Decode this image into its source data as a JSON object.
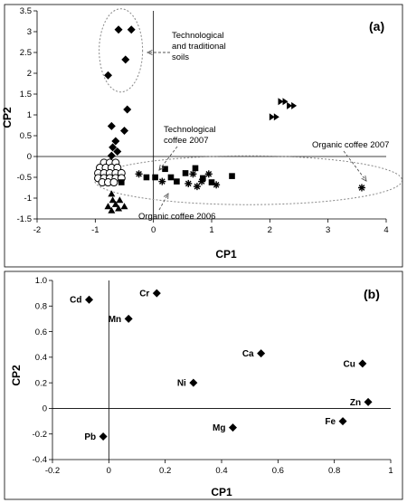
{
  "chart_data": [
    {
      "type": "scatter",
      "panel_label": "(a)",
      "xlabel": "CP1",
      "ylabel": "CP2",
      "xlim": [
        -2,
        4
      ],
      "ylim": [
        -1.5,
        3.5
      ],
      "xticks": [
        "-2",
        "-1",
        "0",
        "1",
        "2",
        "3",
        "4"
      ],
      "yticks": [
        "-1.5",
        "-1",
        "-0.5",
        "0",
        "0.5",
        "1",
        "1.5",
        "2",
        "2.5",
        "3",
        "3.5"
      ],
      "grid": false,
      "series": [
        {
          "marker": "diamond",
          "points": [
            [
              -0.6,
              3.05
            ],
            [
              -0.38,
              3.05
            ],
            [
              -0.48,
              2.33
            ],
            [
              -0.78,
              1.95
            ],
            [
              -0.45,
              1.13
            ],
            [
              -0.72,
              0.73
            ],
            [
              -0.5,
              0.62
            ],
            [
              -0.65,
              0.37
            ],
            [
              -0.7,
              0.22
            ],
            [
              -0.62,
              0.12
            ],
            [
              -0.72,
              0.02
            ]
          ]
        },
        {
          "marker": "open-circle",
          "points": [
            [
              -0.85,
              -0.15
            ],
            [
              -0.75,
              -0.15
            ],
            [
              -0.65,
              -0.15
            ],
            [
              -0.92,
              -0.27
            ],
            [
              -0.82,
              -0.27
            ],
            [
              -0.72,
              -0.27
            ],
            [
              -0.62,
              -0.27
            ],
            [
              -0.95,
              -0.4
            ],
            [
              -0.85,
              -0.4
            ],
            [
              -0.75,
              -0.4
            ],
            [
              -0.65,
              -0.4
            ],
            [
              -0.55,
              -0.4
            ],
            [
              -0.95,
              -0.52
            ],
            [
              -0.85,
              -0.52
            ],
            [
              -0.75,
              -0.52
            ],
            [
              -0.65,
              -0.52
            ],
            [
              -0.55,
              -0.52
            ],
            [
              -0.88,
              -0.62
            ],
            [
              -0.78,
              -0.62
            ],
            [
              -0.68,
              -0.62
            ]
          ]
        },
        {
          "marker": "triangle",
          "points": [
            [
              -0.72,
              -0.9
            ],
            [
              -0.7,
              -1.05
            ],
            [
              -0.65,
              -1.15
            ],
            [
              -0.58,
              -1.05
            ],
            [
              -0.78,
              -1.2
            ],
            [
              -0.5,
              -1.2
            ],
            [
              -0.6,
              -1.25
            ],
            [
              -0.72,
              -1.3
            ]
          ]
        },
        {
          "marker": "square",
          "points": [
            [
              -0.55,
              -0.62
            ],
            [
              -0.12,
              -0.5
            ],
            [
              0.03,
              -0.5
            ],
            [
              0.2,
              -0.3
            ],
            [
              0.3,
              -0.5
            ],
            [
              0.4,
              -0.6
            ],
            [
              0.55,
              -0.4
            ],
            [
              0.72,
              -0.28
            ],
            [
              0.85,
              -0.52
            ],
            [
              1.0,
              -0.62
            ],
            [
              1.35,
              -0.47
            ]
          ]
        },
        {
          "marker": "asterisk",
          "points": [
            [
              -0.25,
              -0.42
            ],
            [
              0.15,
              -0.6
            ],
            [
              0.68,
              -0.42
            ],
            [
              0.6,
              -0.65
            ],
            [
              0.75,
              -0.72
            ],
            [
              0.83,
              -0.6
            ],
            [
              0.95,
              -0.42
            ],
            [
              1.08,
              -0.68
            ],
            [
              3.58,
              -0.75
            ]
          ]
        },
        {
          "marker": "double-triangle",
          "points": [
            [
              2.22,
              1.32
            ],
            [
              2.37,
              1.22
            ],
            [
              2.07,
              0.95
            ]
          ]
        }
      ],
      "annotations": [
        {
          "lines": [
            "Technological",
            "and traditional",
            "soils"
          ]
        },
        {
          "lines": [
            "Technological",
            "coffee 2007"
          ]
        },
        {
          "lines": [
            "Organic coffee 2006"
          ]
        },
        {
          "lines": [
            "Organic coffee 2007"
          ]
        }
      ]
    },
    {
      "type": "scatter",
      "panel_label": "(b)",
      "xlabel": "CP1",
      "ylabel": "CP2",
      "xlim": [
        -0.2,
        1.0
      ],
      "ylim": [
        -0.4,
        1.0
      ],
      "xticks": [
        "-0.2",
        "0",
        "0.2",
        "0.4",
        "0.6",
        "0.8",
        "1"
      ],
      "yticks": [
        "-0.4",
        "-0.2",
        "0",
        "0.2",
        "0.4",
        "0.6",
        "0.8",
        "1.0"
      ],
      "grid": false,
      "points": [
        {
          "label": "Cd",
          "x": -0.07,
          "y": 0.85
        },
        {
          "label": "Cr",
          "x": 0.17,
          "y": 0.9
        },
        {
          "label": "Mn",
          "x": 0.07,
          "y": 0.7
        },
        {
          "label": "Ca",
          "x": 0.54,
          "y": 0.43
        },
        {
          "label": "Cu",
          "x": 0.9,
          "y": 0.35
        },
        {
          "label": "Ni",
          "x": 0.3,
          "y": 0.2
        },
        {
          "label": "Zn",
          "x": 0.92,
          "y": 0.05
        },
        {
          "label": "Fe",
          "x": 0.83,
          "y": -0.1
        },
        {
          "label": "Mg",
          "x": 0.44,
          "y": -0.15
        },
        {
          "label": "Pb",
          "x": -0.02,
          "y": -0.22
        }
      ]
    }
  ]
}
